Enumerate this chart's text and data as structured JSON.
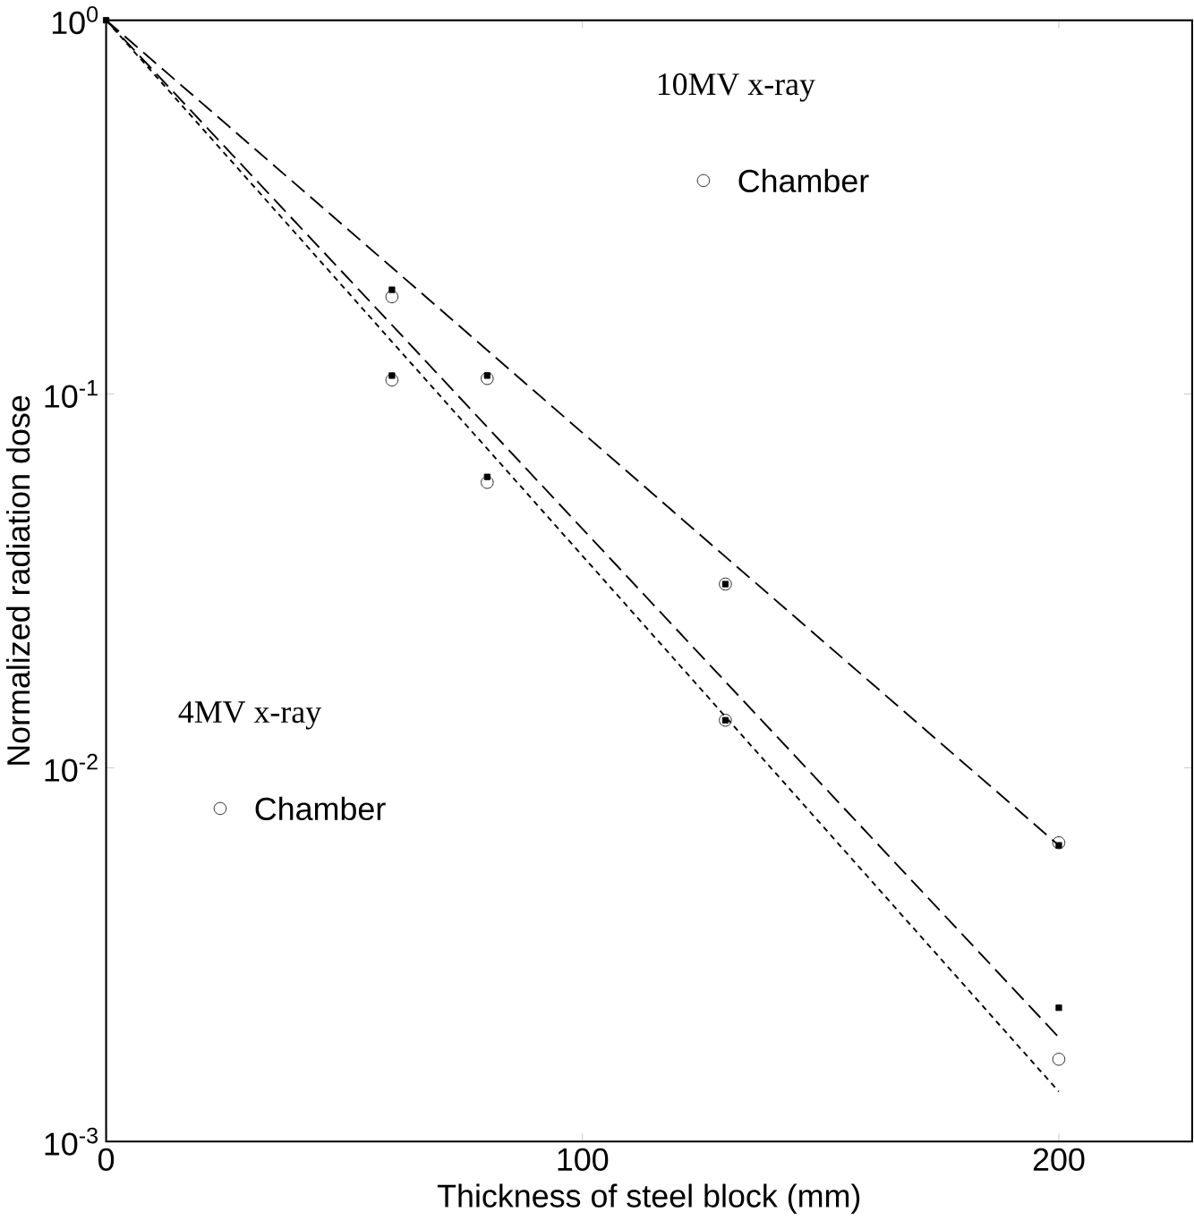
{
  "chart_data": {
    "type": "scatter",
    "xlabel": "Thickness of steel block (mm)",
    "ylabel": "Normalized radiation dose",
    "log": "y",
    "xlim": [
      0,
      228
    ],
    "xticks": [
      0,
      100,
      200
    ],
    "ylim": [
      0.001,
      1
    ],
    "yticks": [
      {
        "value": 0.001,
        "label": "10$^{-3}$"
      },
      {
        "value": 0.01,
        "label": "10$^{-2}$"
      },
      {
        "value": 0.1,
        "label": "10$^{-1}$"
      },
      {
        "value": 1,
        "label": "10$^{0}$"
      }
    ],
    "grid": false,
    "annotations": [
      "10MV x-ray",
      "4MV x-ray"
    ],
    "x": [
      0,
      60,
      80,
      130,
      200
    ],
    "series": [
      {
        "name": "Chamber",
        "color": "#000000",
        "marker": "circle",
        "values": [
          null,
          0.182,
          0.11,
          0.031,
          0.0063
        ]
      },
      {
        "color": "#000000",
        "marker": "square",
        "values": [
          1,
          0.19,
          0.112,
          0.031,
          0.0062
        ]
      },
      {
        "name": "Chamber",
        "color": "#000000",
        "marker": "circle",
        "values": [
          null,
          0.109,
          0.058,
          0.0134,
          0.00166
        ]
      },
      {
        "color": "#000000",
        "marker": "square",
        "values": [
          null,
          0.112,
          0.06,
          0.0134,
          0.00228
        ]
      },
      {
        "type": "line",
        "color": "#000000",
        "line_style": "dashed",
        "values": [
          1,
          0.218,
          0.131,
          0.0367,
          0.0062
        ]
      },
      {
        "type": "line",
        "color": "#000000",
        "line_style": "dashed",
        "values": [
          1,
          0.153,
          0.0816,
          0.017,
          0.0019
        ]
      },
      {
        "type": "line",
        "color": "#000000",
        "line_style": "dotted",
        "values": [
          1,
          0.138,
          0.0714,
          0.0137,
          0.00136
        ]
      }
    ]
  }
}
